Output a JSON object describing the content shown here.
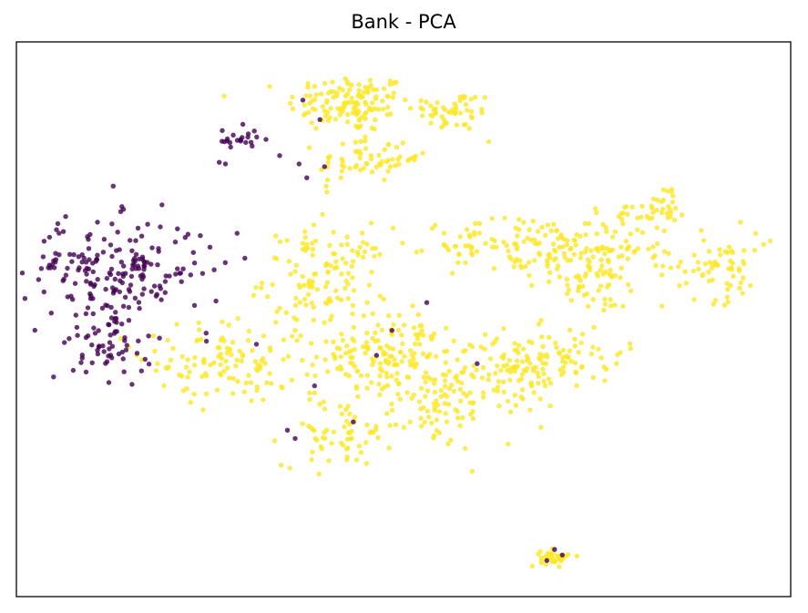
{
  "chart_data": {
    "type": "scatter",
    "title": "Bank - PCA",
    "xlabel": "",
    "ylabel": "",
    "axes_ticks": false,
    "grid": false,
    "legend": "none",
    "xlim": [
      0,
      100
    ],
    "ylim": [
      0,
      100
    ],
    "class_colors": {
      "0": "#440154",
      "1": "#fde725"
    },
    "point_alpha": 0.8,
    "series": [
      {
        "class": 0,
        "clusters": [
          {
            "cx": 12.5,
            "cy": 59.0,
            "sx": 5.8,
            "sy": 4.5,
            "n": 190
          },
          {
            "cx": 12.5,
            "cy": 45.5,
            "sx": 2.6,
            "sy": 3.2,
            "n": 55
          },
          {
            "cx": 28.5,
            "cy": 82.5,
            "sx": 1.3,
            "sy": 1.1,
            "n": 22
          }
        ],
        "points": [
          [
            27.0,
            78.0
          ],
          [
            26.2,
            78.3
          ],
          [
            34.0,
            79.5
          ],
          [
            36.5,
            78.0
          ],
          [
            37.0,
            89.5
          ],
          [
            39.2,
            86.0
          ],
          [
            37.5,
            75.5
          ],
          [
            39.8,
            77.5
          ],
          [
            53.0,
            53.0
          ],
          [
            48.5,
            48.0
          ],
          [
            46.5,
            43.5
          ],
          [
            31.0,
            45.5
          ],
          [
            38.5,
            38.0
          ],
          [
            35.0,
            30.0
          ],
          [
            43.5,
            31.5
          ],
          [
            36.0,
            28.5
          ],
          [
            59.5,
            42.0
          ],
          [
            69.5,
            8.5
          ],
          [
            68.5,
            6.5
          ],
          [
            70.5,
            7.5
          ],
          [
            24.5,
            47.5
          ],
          [
            23.0,
            52.5
          ],
          [
            22.5,
            58.0
          ],
          [
            25.0,
            63.0
          ],
          [
            28.5,
            65.5
          ],
          [
            9.0,
            40.5
          ],
          [
            8.5,
            43.0
          ],
          [
            5.5,
            65.5
          ],
          [
            29.5,
            61.0
          ],
          [
            12.5,
            74.0
          ]
        ]
      },
      {
        "class": 1,
        "clusters": [
          {
            "cx": 43.0,
            "cy": 89.0,
            "sx": 4.0,
            "sy": 2.6,
            "n": 130
          },
          {
            "cx": 56.5,
            "cy": 87.5,
            "sx": 2.6,
            "sy": 1.8,
            "n": 50
          },
          {
            "cx": 44.0,
            "cy": 78.5,
            "sx": 2.5,
            "sy": 2.4,
            "n": 45
          },
          {
            "cx": 49.0,
            "cy": 79.0,
            "sx": 1.5,
            "sy": 1.2,
            "n": 18
          },
          {
            "cx": 27.5,
            "cy": 42.5,
            "sx": 4.5,
            "sy": 3.8,
            "n": 110
          },
          {
            "cx": 40.0,
            "cy": 57.5,
            "sx": 4.0,
            "sy": 4.5,
            "n": 120
          },
          {
            "cx": 48.5,
            "cy": 43.5,
            "sx": 4.8,
            "sy": 3.6,
            "n": 160
          },
          {
            "cx": 54.5,
            "cy": 34.0,
            "sx": 3.2,
            "sy": 3.8,
            "n": 80
          },
          {
            "cx": 41.5,
            "cy": 29.5,
            "sx": 3.5,
            "sy": 3.0,
            "n": 60
          },
          {
            "cx": 64.5,
            "cy": 40.5,
            "sx": 3.5,
            "sy": 3.8,
            "n": 90
          },
          {
            "cx": 71.5,
            "cy": 44.0,
            "sx": 3.5,
            "sy": 2.5,
            "n": 50
          },
          {
            "cx": 65.5,
            "cy": 63.0,
            "sx": 5.0,
            "sy": 3.0,
            "n": 90
          },
          {
            "cx": 74.5,
            "cy": 58.0,
            "sx": 3.5,
            "sy": 3.5,
            "n": 70
          },
          {
            "cx": 78.5,
            "cy": 65.0,
            "sx": 3.2,
            "sy": 3.2,
            "n": 60
          },
          {
            "cx": 84.0,
            "cy": 71.0,
            "sx": 1.2,
            "sy": 2.0,
            "n": 25
          },
          {
            "cx": 90.5,
            "cy": 59.5,
            "sx": 3.5,
            "sy": 3.0,
            "n": 65
          },
          {
            "cx": 58.5,
            "cy": 63.5,
            "sx": 1.8,
            "sy": 1.6,
            "n": 18
          },
          {
            "cx": 69.5,
            "cy": 7.0,
            "sx": 0.9,
            "sy": 0.7,
            "n": 40
          }
        ],
        "points": [
          [
            14.5,
            45.0
          ],
          [
            13.5,
            46.5
          ],
          [
            15.5,
            43.5
          ],
          [
            34.0,
            52.0
          ],
          [
            36.0,
            48.0
          ],
          [
            63.5,
            27.5
          ],
          [
            59.0,
            35.0
          ],
          [
            57.5,
            38.5
          ],
          [
            49.0,
            31.0
          ],
          [
            44.5,
            26.0
          ],
          [
            40.0,
            46.0
          ],
          [
            31.5,
            41.5
          ],
          [
            22.0,
            37.5
          ],
          [
            21.0,
            40.0
          ],
          [
            37.5,
            63.5
          ],
          [
            33.5,
            65.0
          ],
          [
            77.5,
            42.0
          ],
          [
            74.5,
            39.5
          ],
          [
            61.5,
            45.5
          ],
          [
            86.5,
            56.5
          ],
          [
            96.5,
            63.5
          ],
          [
            93.5,
            67.5
          ],
          [
            60.5,
            90.0
          ],
          [
            61.0,
            82.0
          ],
          [
            38.5,
            92.0
          ],
          [
            40.0,
            74.0
          ]
        ]
      }
    ]
  }
}
